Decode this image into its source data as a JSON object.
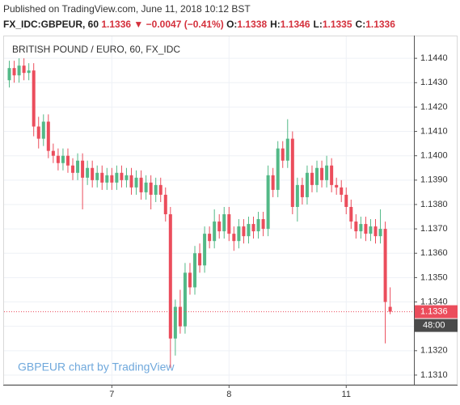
{
  "header": {
    "published": "Published on TradingView.com, June 11, 2018 10:12 BST",
    "symbol": "FX_IDC:GBPEUR, 60",
    "last": "1.1336",
    "arrow": "▼",
    "change": "−0.0047 (−0.41%)",
    "ohlc": [
      {
        "label": "O:",
        "value": "1.1338"
      },
      {
        "label": "H:",
        "value": "1.1346"
      },
      {
        "label": "L:",
        "value": "1.1335"
      },
      {
        "label": "C:",
        "value": "1.1336"
      }
    ]
  },
  "chart_data": {
    "type": "candlestick",
    "title": "BRITISH POUND / EURO, 60, FX_IDC",
    "watermark": "GBPEUR chart by TradingView",
    "countdown": "48:00",
    "up_color": "#53b987",
    "down_color": "#eb4d5c",
    "grid": true,
    "categories": [
      null,
      null,
      null,
      null,
      null,
      null,
      null,
      null,
      null,
      null,
      null,
      null,
      null,
      null,
      null,
      null,
      null,
      null,
      null,
      null,
      null,
      "7",
      null,
      null,
      null,
      null,
      null,
      null,
      null,
      null,
      null,
      null,
      null,
      null,
      null,
      null,
      null,
      null,
      null,
      null,
      null,
      null,
      null,
      null,
      null,
      "8",
      null,
      null,
      null,
      null,
      null,
      null,
      null,
      null,
      null,
      null,
      null,
      null,
      null,
      null,
      null,
      null,
      null,
      null,
      null,
      null,
      null,
      null,
      null,
      "11",
      null,
      null,
      null,
      null,
      null,
      null,
      null,
      null,
      null
    ],
    "open": [
      1.1431,
      1.1436,
      1.1433,
      1.1437,
      1.1434,
      1.1435,
      1.1412,
      1.1407,
      1.1414,
      1.1402,
      1.14,
      1.1397,
      1.14,
      1.1396,
      1.1393,
      1.1398,
      1.1391,
      1.1395,
      1.139,
      1.1393,
      1.1389,
      1.1392,
      1.1389,
      1.1393,
      1.139,
      1.1392,
      1.1387,
      1.1391,
      1.1385,
      1.1389,
      1.1384,
      1.1388,
      1.1384,
      1.1376,
      1.1325,
      1.1338,
      1.133,
      1.1352,
      1.1346,
      1.136,
      1.1355,
      1.1368,
      1.1365,
      1.1373,
      1.1369,
      1.1376,
      1.1368,
      1.1365,
      1.1371,
      1.1367,
      1.1372,
      1.1369,
      1.1374,
      1.137,
      1.1392,
      1.1386,
      1.1403,
      1.1398,
      1.1407,
      1.1379,
      1.1388,
      1.1383,
      1.1393,
      1.1388,
      1.1395,
      1.139,
      1.1396,
      1.1388,
      1.1387,
      1.1384,
      1.1379,
      1.1373,
      1.1369,
      1.1372,
      1.1368,
      1.1371,
      1.1367,
      1.137,
      1.1338
    ],
    "high": [
      1.1439,
      1.1439,
      1.144,
      1.144,
      1.1438,
      1.1438,
      1.1416,
      1.1417,
      1.1417,
      1.1405,
      1.1403,
      1.1403,
      1.1403,
      1.1399,
      1.1401,
      1.1401,
      1.1398,
      1.1398,
      1.1396,
      1.1396,
      1.1395,
      1.1395,
      1.1396,
      1.1396,
      1.1395,
      1.1395,
      1.1394,
      1.1394,
      1.1392,
      1.1392,
      1.1391,
      1.1391,
      1.1387,
      1.1379,
      1.1341,
      1.1345,
      1.1356,
      1.1356,
      1.1363,
      1.1364,
      1.1371,
      1.1371,
      1.1378,
      1.1376,
      1.1379,
      1.1379,
      1.1371,
      1.1374,
      1.1374,
      1.1375,
      1.1375,
      1.1377,
      1.1377,
      1.1396,
      1.1395,
      1.1406,
      1.1406,
      1.1415,
      1.141,
      1.1391,
      1.1391,
      1.1396,
      1.1396,
      1.1398,
      1.1398,
      1.14,
      1.1399,
      1.1391,
      1.139,
      1.1387,
      1.1382,
      1.1376,
      1.1375,
      1.1375,
      1.1374,
      1.1374,
      1.1378,
      1.1373,
      1.1346
    ],
    "low": [
      1.1428,
      1.143,
      1.143,
      1.1431,
      1.1431,
      1.1408,
      1.1403,
      1.1404,
      1.1399,
      1.1397,
      1.1394,
      1.1394,
      1.1393,
      1.139,
      1.139,
      1.1378,
      1.1388,
      1.1387,
      1.1387,
      1.1386,
      1.1386,
      1.1386,
      1.1386,
      1.1387,
      1.1387,
      1.1384,
      1.1384,
      1.1382,
      1.1382,
      1.1378,
      1.1381,
      1.1381,
      1.1373,
      1.1313,
      1.1318,
      1.1327,
      1.1327,
      1.1343,
      1.1343,
      1.1352,
      1.1352,
      1.1362,
      1.1362,
      1.1366,
      1.1366,
      1.1365,
      1.1361,
      1.1362,
      1.1364,
      1.1364,
      1.1366,
      1.1366,
      1.1367,
      1.1367,
      1.1383,
      1.1383,
      1.1395,
      1.1395,
      1.1376,
      1.1373,
      1.138,
      1.138,
      1.1385,
      1.1385,
      1.1387,
      1.1387,
      1.1385,
      1.1384,
      1.1381,
      1.1376,
      1.137,
      1.1366,
      1.1366,
      1.1365,
      1.1365,
      1.1364,
      1.1364,
      1.1323,
      1.1335
    ],
    "close": [
      1.1436,
      1.1433,
      1.1437,
      1.1434,
      1.1435,
      1.1412,
      1.1407,
      1.1414,
      1.1402,
      1.14,
      1.1397,
      1.14,
      1.1396,
      1.1393,
      1.1398,
      1.1391,
      1.1395,
      1.139,
      1.1393,
      1.1389,
      1.1392,
      1.1389,
      1.1393,
      1.139,
      1.1392,
      1.1387,
      1.1391,
      1.1385,
      1.1389,
      1.1384,
      1.1388,
      1.1384,
      1.1376,
      1.1325,
      1.1338,
      1.133,
      1.1352,
      1.1346,
      1.136,
      1.1355,
      1.1368,
      1.1365,
      1.1373,
      1.1369,
      1.1376,
      1.1368,
      1.1365,
      1.1371,
      1.1367,
      1.1372,
      1.1369,
      1.1374,
      1.137,
      1.1392,
      1.1386,
      1.1403,
      1.1398,
      1.1407,
      1.1379,
      1.1388,
      1.1383,
      1.1393,
      1.1388,
      1.1395,
      1.139,
      1.1396,
      1.1388,
      1.1387,
      1.1384,
      1.1379,
      1.1373,
      1.1369,
      1.1372,
      1.1368,
      1.1371,
      1.1367,
      1.137,
      1.134,
      1.1336
    ],
    "last_label": "1.1336",
    "ylim": [
      1.1307,
      1.1449
    ],
    "yticks": [
      {
        "value": 1.131,
        "label": "1.1310"
      },
      {
        "value": 1.132,
        "label": "1.1320"
      },
      {
        "value": 1.133,
        "label": "1.1330"
      },
      {
        "value": 1.134,
        "label": "1.1340"
      },
      {
        "value": 1.135,
        "label": "1.1350"
      },
      {
        "value": 1.136,
        "label": "1.1360"
      },
      {
        "value": 1.137,
        "label": "1.1370"
      },
      {
        "value": 1.138,
        "label": "1.1380"
      },
      {
        "value": 1.139,
        "label": "1.1390"
      },
      {
        "value": 1.14,
        "label": "1.1400"
      },
      {
        "value": 1.141,
        "label": "1.1410"
      },
      {
        "value": 1.142,
        "label": "1.1420"
      },
      {
        "value": 1.143,
        "label": "1.1430"
      },
      {
        "value": 1.144,
        "label": "1.1440"
      }
    ]
  }
}
